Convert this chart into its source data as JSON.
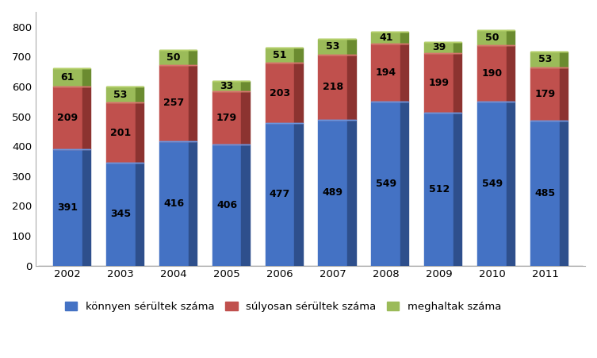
{
  "years": [
    "2002",
    "2003",
    "2004",
    "2005",
    "2006",
    "2007",
    "2008",
    "2009",
    "2010",
    "2011"
  ],
  "light_injured": [
    391,
    345,
    416,
    406,
    477,
    489,
    549,
    512,
    549,
    485
  ],
  "serious_injured": [
    209,
    201,
    257,
    179,
    203,
    218,
    194,
    199,
    190,
    179
  ],
  "deaths": [
    61,
    53,
    50,
    33,
    51,
    53,
    41,
    39,
    50,
    53
  ],
  "color_light": "#4472C4",
  "color_light_side": "#2E4F8C",
  "color_light_top": "#6A96E0",
  "color_serious": "#C0504D",
  "color_serious_side": "#8C3330",
  "color_serious_top": "#D9726F",
  "color_deaths": "#9BBB59",
  "color_deaths_side": "#6B8B30",
  "color_deaths_top": "#B5D06A",
  "legend_labels": [
    "könnyen sérültek száma",
    "súlyosan sérültek száma",
    "meghaltak száma"
  ],
  "ylim": [
    0,
    850
  ],
  "yticks": [
    0,
    100,
    200,
    300,
    400,
    500,
    600,
    700,
    800
  ],
  "background_color": "#ffffff",
  "plot_bg_color": "#ffffff",
  "bar_width": 0.55,
  "depth": 0.12,
  "label_fontsize": 9,
  "tick_fontsize": 9.5,
  "legend_fontsize": 9.5
}
